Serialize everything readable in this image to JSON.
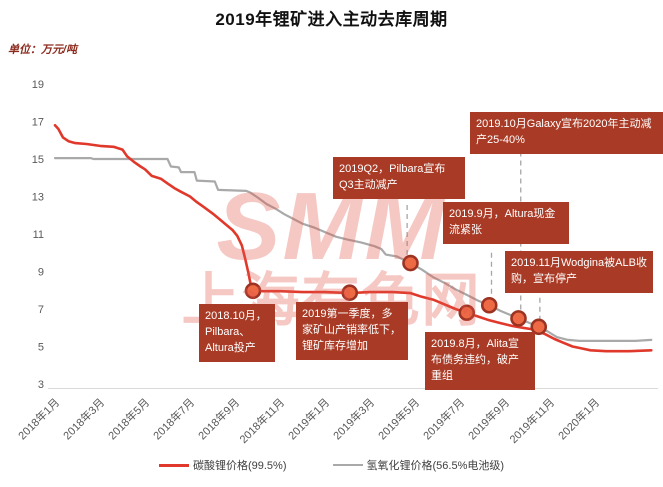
{
  "title": "2019年锂矿进入主动去库周期",
  "unit_label": "单位：万元/吨",
  "watermark": {
    "line1": "SMM",
    "line2": "上海有色网"
  },
  "colors": {
    "carbonate_line": "#e0392b",
    "hydroxide_line": "#a9a9a9",
    "annotation_bg": "#a93b26",
    "marker_fill": "#ed6a45",
    "marker_stroke": "#9c3322",
    "axis_line": "#d9d9d9",
    "tick_text": "#595959",
    "dashed_guide": "#a6a6a6"
  },
  "chart_data": {
    "type": "line",
    "title": "2019年锂矿进入主动去库周期",
    "ylabel": "万元/吨",
    "ylim": [
      3,
      19
    ],
    "y_ticks": [
      19,
      17,
      15,
      13,
      11,
      9,
      7,
      5,
      3
    ],
    "x_tick_labels": [
      "2018年1月",
      "2018年3月",
      "2018年5月",
      "2018年7月",
      "2018年9月",
      "2018年11月",
      "2019年1月",
      "2019年3月",
      "2019年5月",
      "2019年7月",
      "2019年9月",
      "2019年11月",
      "2020年1月"
    ],
    "x_tick_months": [
      0,
      2,
      4,
      6,
      8,
      10,
      12,
      14,
      16,
      18,
      20,
      22,
      24
    ],
    "grid": false,
    "legend_position": "bottom",
    "series": [
      {
        "name": "碳酸锂价格(99.5%)",
        "color": "#e0392b",
        "points": [
          [
            0,
            16.8
          ],
          [
            0.15,
            16.6
          ],
          [
            0.35,
            16.15
          ],
          [
            0.6,
            15.95
          ],
          [
            0.9,
            15.85
          ],
          [
            1.4,
            15.8
          ],
          [
            2,
            15.7
          ],
          [
            2.6,
            15.65
          ],
          [
            3,
            15.5
          ],
          [
            3.2,
            15.15
          ],
          [
            3.5,
            14.85
          ],
          [
            3.8,
            14.6
          ],
          [
            4,
            14.45
          ],
          [
            4.3,
            14.1
          ],
          [
            4.7,
            13.95
          ],
          [
            5,
            13.7
          ],
          [
            5.3,
            13.45
          ],
          [
            5.6,
            13.25
          ],
          [
            6,
            13.0
          ],
          [
            6.3,
            12.7
          ],
          [
            6.6,
            12.45
          ],
          [
            7,
            12.1
          ],
          [
            7.3,
            11.8
          ],
          [
            7.6,
            11.5
          ],
          [
            7.9,
            11.2
          ],
          [
            8.1,
            10.9
          ],
          [
            8.3,
            10.4
          ],
          [
            8.45,
            9.7
          ],
          [
            8.6,
            8.9
          ],
          [
            8.7,
            8.3
          ],
          [
            8.8,
            8.0
          ],
          [
            9.2,
            7.95
          ],
          [
            10,
            7.95
          ],
          [
            11,
            7.9
          ],
          [
            12,
            7.9
          ],
          [
            13.1,
            7.85
          ],
          [
            14,
            7.9
          ],
          [
            15,
            7.9
          ],
          [
            15.8,
            7.85
          ],
          [
            16.3,
            7.65
          ],
          [
            16.8,
            7.5
          ],
          [
            17.3,
            7.25
          ],
          [
            17.8,
            7.0
          ],
          [
            18.3,
            6.8
          ],
          [
            18.8,
            6.6
          ],
          [
            19.3,
            6.4
          ],
          [
            19.8,
            6.25
          ],
          [
            20.3,
            6.1
          ],
          [
            20.8,
            6.0
          ],
          [
            21.3,
            5.9
          ],
          [
            21.8,
            5.65
          ],
          [
            22.2,
            5.4
          ],
          [
            22.6,
            5.2
          ],
          [
            23,
            5.0
          ],
          [
            23.4,
            4.9
          ],
          [
            23.8,
            4.8
          ],
          [
            24.5,
            4.75
          ],
          [
            25.5,
            4.75
          ],
          [
            26.5,
            4.8
          ]
        ]
      },
      {
        "name": "氢氧化锂价格(56.5%电池级)",
        "color": "#a9a9a9",
        "points": [
          [
            0,
            15.05
          ],
          [
            1.6,
            15.05
          ],
          [
            1.7,
            15.0
          ],
          [
            5,
            15.0
          ],
          [
            5.15,
            14.6
          ],
          [
            5.5,
            14.55
          ],
          [
            5.6,
            14.3
          ],
          [
            6.2,
            14.3
          ],
          [
            6.3,
            13.85
          ],
          [
            7.1,
            13.8
          ],
          [
            7.25,
            13.35
          ],
          [
            8.5,
            13.3
          ],
          [
            8.7,
            13.2
          ],
          [
            9,
            12.95
          ],
          [
            9.4,
            12.6
          ],
          [
            9.8,
            12.35
          ],
          [
            10.2,
            12.05
          ],
          [
            10.6,
            11.8
          ],
          [
            11,
            11.55
          ],
          [
            11.5,
            11.35
          ],
          [
            12,
            11.1
          ],
          [
            12.5,
            10.85
          ],
          [
            13,
            10.7
          ],
          [
            13.6,
            10.55
          ],
          [
            14.2,
            10.35
          ],
          [
            14.5,
            10.2
          ],
          [
            14.7,
            9.9
          ],
          [
            15.2,
            9.8
          ],
          [
            15.8,
            9.45
          ],
          [
            16.3,
            9.1
          ],
          [
            16.8,
            8.7
          ],
          [
            17.3,
            8.4
          ],
          [
            17.8,
            8.05
          ],
          [
            18.3,
            7.75
          ],
          [
            18.8,
            7.45
          ],
          [
            19.3,
            7.2
          ],
          [
            19.8,
            6.9
          ],
          [
            20.2,
            6.7
          ],
          [
            20.6,
            6.5
          ],
          [
            21,
            6.3
          ],
          [
            21.5,
            6.05
          ],
          [
            21.9,
            5.8
          ],
          [
            22.3,
            5.5
          ],
          [
            22.8,
            5.35
          ],
          [
            23.3,
            5.3
          ],
          [
            24.5,
            5.3
          ],
          [
            25.8,
            5.3
          ],
          [
            26.5,
            5.35
          ]
        ]
      }
    ],
    "event_markers": [
      {
        "series": 0,
        "month": 8.8,
        "value": 7.97,
        "event": "2018.10月，Pilbara、Altura投产"
      },
      {
        "series": 0,
        "month": 13.1,
        "value": 7.87,
        "event": "2019第一季度，多家矿山产销率低下，锂矿库存增加"
      },
      {
        "series": 1,
        "month": 15.8,
        "value": 9.45,
        "event": "2019Q2，Pilbara宣布Q3主动减产"
      },
      {
        "series": 0,
        "month": 18.3,
        "value": 6.8,
        "event": "2019.8月，Alita宣布债务违约，破产重组"
      },
      {
        "series": 1,
        "month": 19.3,
        "value": 7.2,
        "event": "2019.9月，Altura现金流紧张"
      },
      {
        "series": 1,
        "month": 20.6,
        "value": 6.5,
        "event": "2019.10月Galaxy宣布2020年主动减产25-40%"
      },
      {
        "series": 1,
        "month": 21.5,
        "value": 6.05,
        "event": "2019.11月Wodgina被ALB收购，宣布停产"
      }
    ],
    "dashed_guides": [
      {
        "month": 15.65,
        "value_top": 12.55,
        "value_bottom": 9.7
      },
      {
        "month": 19.4,
        "value_top": 10.0,
        "value_bottom": 7.4
      },
      {
        "month": 20.7,
        "value_top": 15.4,
        "value_bottom": 6.6
      },
      {
        "month": 21.55,
        "value_top": 7.6,
        "value_bottom": 6.2
      }
    ]
  },
  "annotations": [
    {
      "id": "pilbara-2018",
      "text": "2018.10月，Pilbara、Altura投产"
    },
    {
      "id": "q1-2019",
      "text": "2019第一季度，多家矿山产销率低下，锂矿库存增加"
    },
    {
      "id": "q2-2019",
      "text": "2019Q2，Pilbara宣布Q3主动减产"
    },
    {
      "id": "altura-sep",
      "text": "2019.9月，Altura现金流紧张"
    },
    {
      "id": "galaxy-oct",
      "text": "2019.10月Galaxy宣布2020年主动减产25-40%"
    },
    {
      "id": "wodgina-nov",
      "text": "2019.11月Wodgina被ALB收购，宣布停产"
    },
    {
      "id": "alita-aug",
      "text": "2019.8月，Alita宣布债务违约，破产重组"
    }
  ],
  "legend": [
    {
      "label": "碳酸锂价格(99.5%)"
    },
    {
      "label": "氢氧化锂价格(56.5%电池级)"
    }
  ]
}
